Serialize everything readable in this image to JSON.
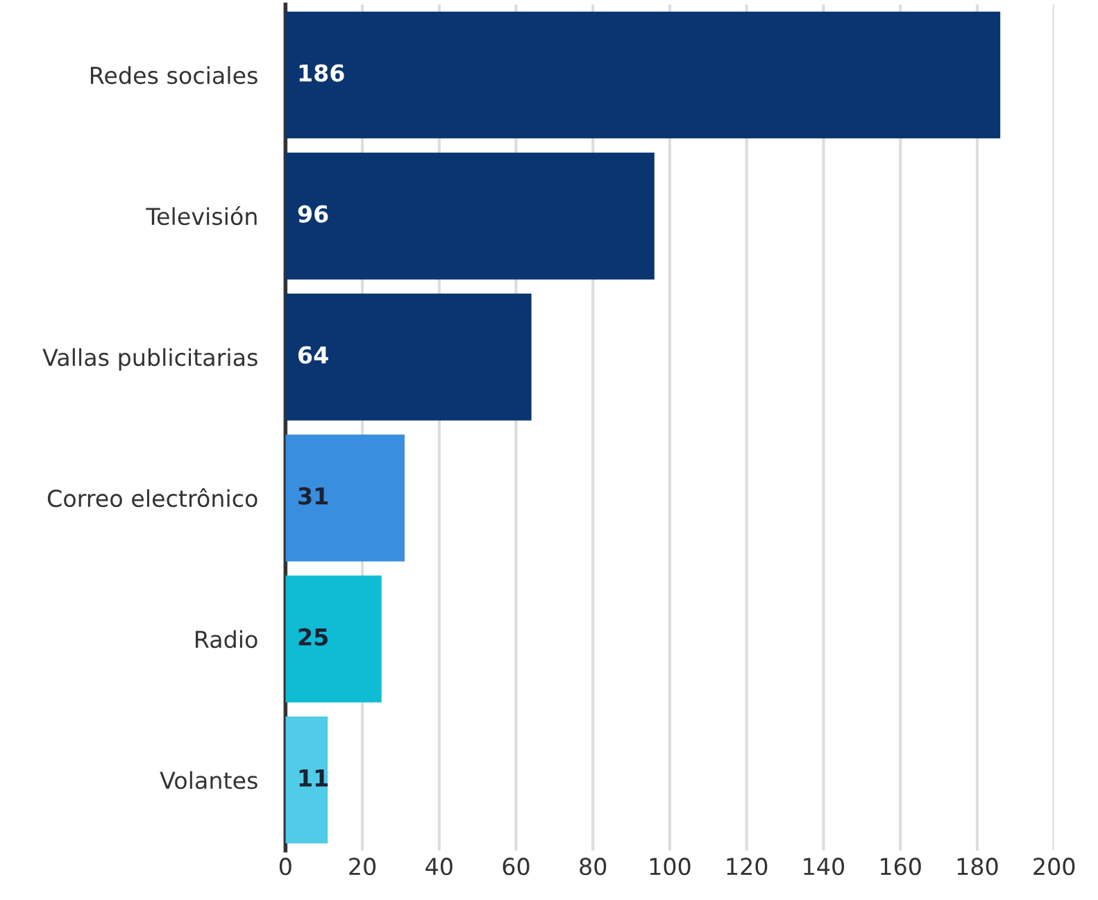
{
  "chart_data": {
    "type": "bar",
    "orientation": "horizontal",
    "categories": [
      "Redes sociales",
      "Televisión",
      "Vallas publicitarias",
      "Correo electrônico",
      "Radio",
      "Volantes"
    ],
    "values": [
      186,
      96,
      64,
      31,
      25,
      11
    ],
    "colors": [
      "#0a3570",
      "#0a3570",
      "#0a3570",
      "#3a8ee0",
      "#10bcd4",
      "#50cbe8"
    ],
    "data_labels": true,
    "xlim": [
      0,
      200
    ],
    "xticks": [
      0,
      20,
      40,
      60,
      80,
      100,
      120,
      140,
      160,
      180,
      200
    ],
    "grid": "x"
  }
}
